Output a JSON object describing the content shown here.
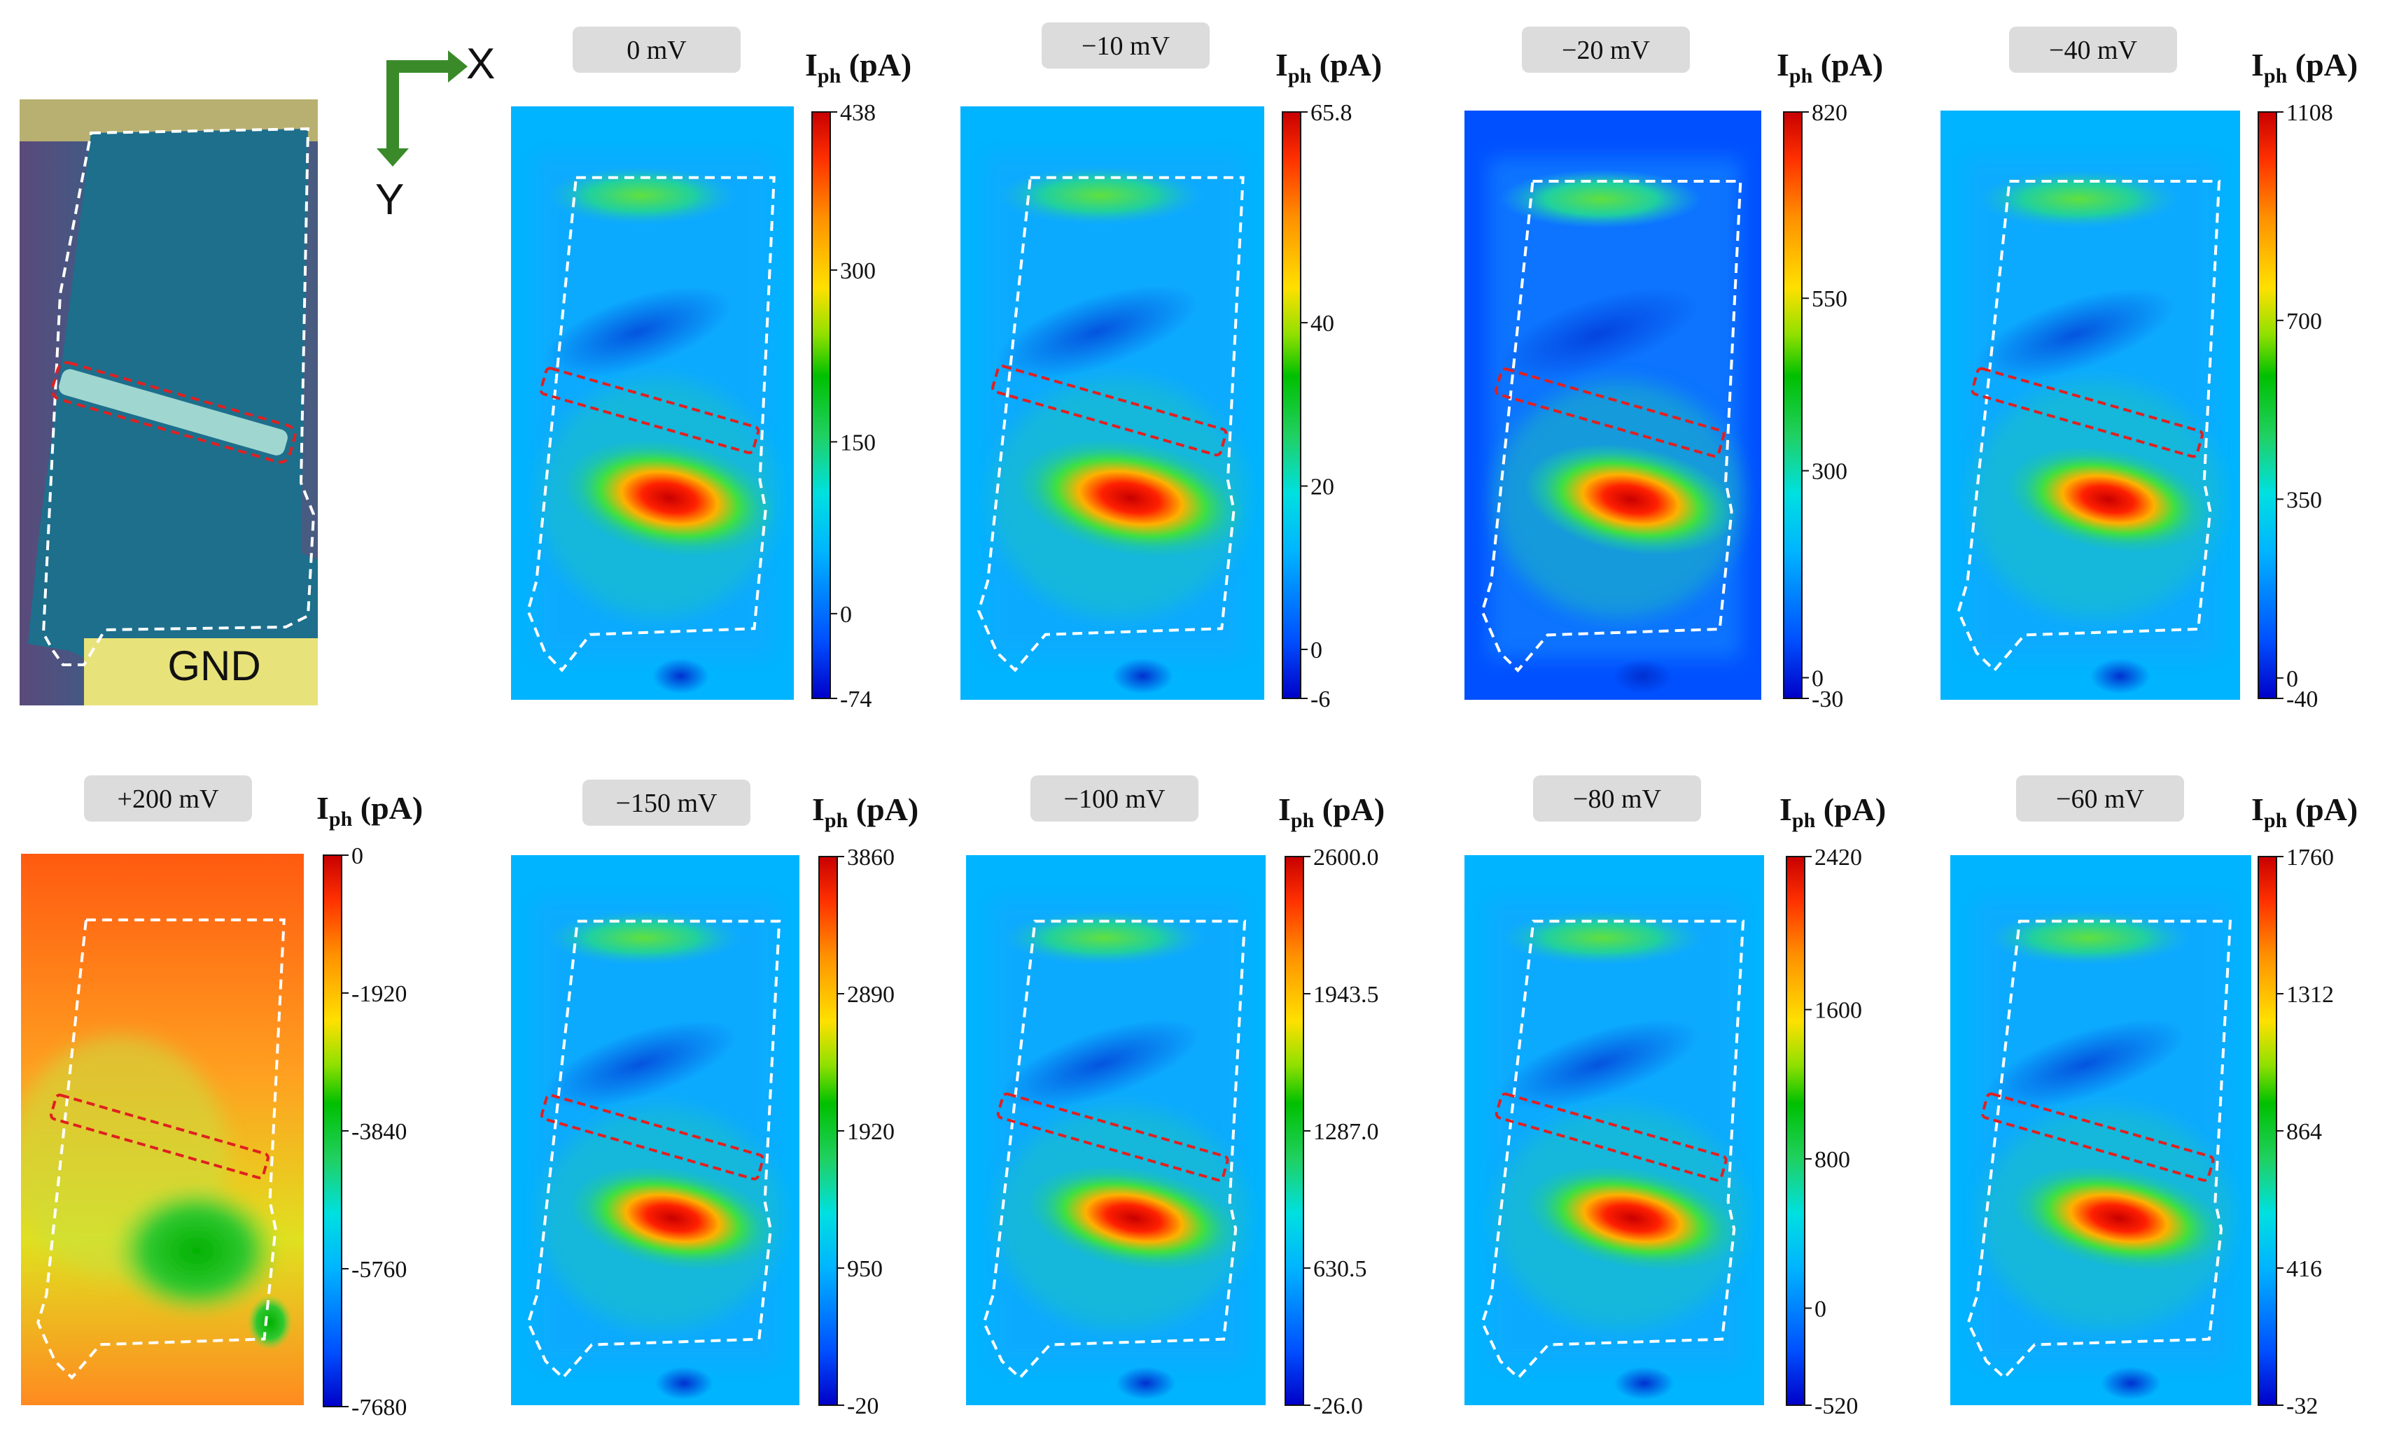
{
  "figure": {
    "axes": {
      "x": "X",
      "y": "Y"
    },
    "microscope": {
      "ground_label": "GND"
    },
    "colorbar_title": {
      "main": "I",
      "sub": "ph",
      "unit": " (pA)"
    },
    "colors": {
      "scale": [
        "#0000c8",
        "#0050ff",
        "#00b4ff",
        "#00e0e0",
        "#20d060",
        "#00c000",
        "#90e000",
        "#ffe000",
        "#ff9000",
        "#ff3000",
        "#c80000"
      ],
      "outline": "#ffffff",
      "channel": "#e02020",
      "axis_arrow": "#3a8a2a",
      "label_box": "#dcdcdc"
    }
  },
  "panels": [
    {
      "bias": "0 mV",
      "ticks": [
        "438",
        "300",
        "150",
        "0",
        "-74"
      ],
      "tick_values": [
        438,
        300,
        150,
        0,
        -74
      ],
      "range": [
        -74,
        438
      ],
      "max_intensity": 1.0,
      "bg_level": 0.18
    },
    {
      "bias": "−10 mV",
      "ticks": [
        "65.8",
        "40",
        "20",
        "0",
        "-6"
      ],
      "tick_values": [
        65.8,
        40,
        20,
        0,
        -6
      ],
      "range": [
        -6,
        65.8
      ],
      "max_intensity": 1.0,
      "bg_level": 0.15
    },
    {
      "bias": "−20 mV",
      "ticks": [
        "820",
        "550",
        "300",
        "0",
        "-30"
      ],
      "tick_values": [
        820,
        550,
        300,
        0,
        -30
      ],
      "range": [
        -30,
        820
      ],
      "max_intensity": 0.95,
      "bg_level": 0.14
    },
    {
      "bias": "−40 mV",
      "ticks": [
        "1108",
        "700",
        "350",
        "0",
        "-40"
      ],
      "tick_values": [
        1108,
        700,
        350,
        0,
        -40
      ],
      "range": [
        -40,
        1108
      ],
      "max_intensity": 0.9,
      "bg_level": 0.16
    },
    {
      "bias": "+200 mV",
      "ticks": [
        "0",
        "-1920",
        "-3840",
        "-5760",
        "-7680"
      ],
      "tick_values": [
        0,
        -1920,
        -3840,
        -5760,
        -7680
      ],
      "range": [
        -7680,
        0
      ],
      "max_intensity": 0.9,
      "bg_level": 0.8,
      "inverted": true
    },
    {
      "bias": "−150 mV",
      "ticks": [
        "3860",
        "2890",
        "1920",
        "950",
        "-20"
      ],
      "tick_values": [
        3860,
        2890,
        1920,
        950,
        -20
      ],
      "range": [
        -20,
        3860
      ],
      "max_intensity": 0.95,
      "bg_level": 0.2
    },
    {
      "bias": "−100 mV",
      "ticks": [
        "2600.0",
        "1943.5",
        "1287.0",
        "630.5",
        "-26.0"
      ],
      "tick_values": [
        2600,
        1943.5,
        1287,
        630.5,
        -26
      ],
      "range": [
        -26,
        2600
      ],
      "max_intensity": 0.95,
      "bg_level": 0.18
    },
    {
      "bias": "−80 mV",
      "ticks": [
        "2420",
        "1600",
        "800",
        "0",
        "-520"
      ],
      "tick_values": [
        2420,
        1600,
        800,
        0,
        -520
      ],
      "range": [
        -520,
        2420
      ],
      "max_intensity": 0.95,
      "bg_level": 0.2
    },
    {
      "bias": "−60 mV",
      "ticks": [
        "1760",
        "1312",
        "864",
        "416",
        "-32"
      ],
      "tick_values": [
        1760,
        1312,
        864,
        416,
        -32
      ],
      "range": [
        -32,
        1760
      ],
      "max_intensity": 0.95,
      "bg_level": 0.18
    }
  ]
}
